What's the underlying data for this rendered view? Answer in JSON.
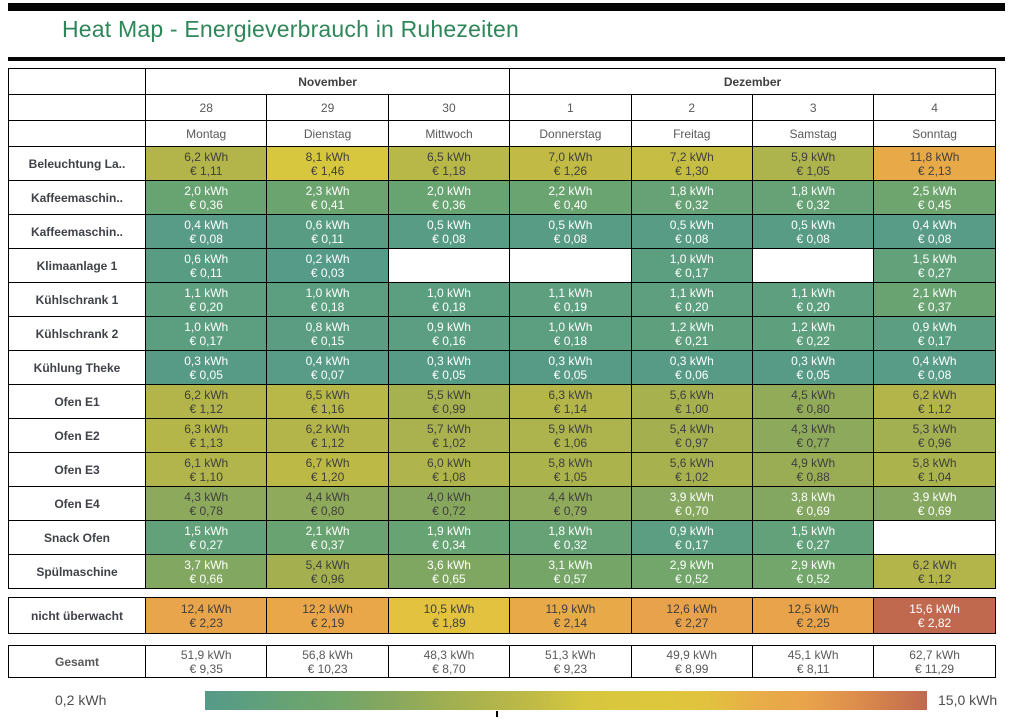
{
  "page": {
    "title": "Heat Map - Energieverbrauch in Ruhezeiten"
  },
  "colors": {
    "title_green": "#2e8659",
    "rule_black": "#050505",
    "cell_text_dark": "#3f3f3f",
    "cell_text_light": "#ffffff",
    "muted_text": "#595959",
    "label_text": "#3f4247"
  },
  "chart_data": {
    "type": "heatmap",
    "title": "Heat Map - Energieverbrauch in Ruhezeiten",
    "unit": "kWh",
    "currency": "EUR",
    "scale_min_kwh": 0.2,
    "scale_max_kwh": 15.0,
    "colormap_stops": [
      [
        0.2,
        "#569a88"
      ],
      [
        1.0,
        "#5c9e80"
      ],
      [
        2.0,
        "#68a372"
      ],
      [
        3.0,
        "#73a669"
      ],
      [
        4.0,
        "#87a75e"
      ],
      [
        5.0,
        "#9cae53"
      ],
      [
        6.0,
        "#afb44c"
      ],
      [
        7.0,
        "#c1bb45"
      ],
      [
        8.0,
        "#d7c73e"
      ],
      [
        9.5,
        "#ddc73d"
      ],
      [
        10.5,
        "#e2c23e"
      ],
      [
        11.5,
        "#e8ad48"
      ],
      [
        12.5,
        "#e9a44b"
      ],
      [
        13.5,
        "#dd8f4c"
      ],
      [
        15.0,
        "#c0694f"
      ]
    ],
    "text_dark_range": [
      4.0,
      15.0
    ],
    "columns": {
      "month_groups": [
        {
          "label": "November",
          "span": 3
        },
        {
          "label": "Dezember",
          "span": 4
        }
      ],
      "dates": [
        "28",
        "29",
        "30",
        "1",
        "2",
        "3",
        "4"
      ],
      "weekdays": [
        "Montag",
        "Dienstag",
        "Mittwoch",
        "Donnerstag",
        "Freitag",
        "Samstag",
        "Sonntag"
      ]
    },
    "rows": [
      {
        "label": "Beleuchtung La..",
        "cells": [
          {
            "kwh": "6,2 kWh",
            "eur": "€ 1,11",
            "value": 6.2
          },
          {
            "kwh": "8,1 kWh",
            "eur": "€ 1,46",
            "value": 8.1
          },
          {
            "kwh": "6,5 kWh",
            "eur": "€ 1,18",
            "value": 6.5
          },
          {
            "kwh": "7,0 kWh",
            "eur": "€ 1,26",
            "value": 7.0
          },
          {
            "kwh": "7,2 kWh",
            "eur": "€ 1,30",
            "value": 7.2
          },
          {
            "kwh": "5,9 kWh",
            "eur": "€ 1,05",
            "value": 5.9
          },
          {
            "kwh": "11,8 kWh",
            "eur": "€ 2,13",
            "value": 11.8
          }
        ]
      },
      {
        "label": "Kaffeemaschin..",
        "cells": [
          {
            "kwh": "2,0 kWh",
            "eur": "€ 0,36",
            "value": 2.0
          },
          {
            "kwh": "2,3 kWh",
            "eur": "€ 0,41",
            "value": 2.3
          },
          {
            "kwh": "2,0 kWh",
            "eur": "€ 0,36",
            "value": 2.0
          },
          {
            "kwh": "2,2 kWh",
            "eur": "€ 0,40",
            "value": 2.2
          },
          {
            "kwh": "1,8 kWh",
            "eur": "€ 0,32",
            "value": 1.8
          },
          {
            "kwh": "1,8 kWh",
            "eur": "€ 0,32",
            "value": 1.8
          },
          {
            "kwh": "2,5 kWh",
            "eur": "€ 0,45",
            "value": 2.5
          }
        ]
      },
      {
        "label": "Kaffeemaschin..",
        "cells": [
          {
            "kwh": "0,4 kWh",
            "eur": "€ 0,08",
            "value": 0.4
          },
          {
            "kwh": "0,6 kWh",
            "eur": "€ 0,11",
            "value": 0.6
          },
          {
            "kwh": "0,5 kWh",
            "eur": "€ 0,08",
            "value": 0.5
          },
          {
            "kwh": "0,5 kWh",
            "eur": "€ 0,08",
            "value": 0.5
          },
          {
            "kwh": "0,5 kWh",
            "eur": "€ 0,08",
            "value": 0.5
          },
          {
            "kwh": "0,5 kWh",
            "eur": "€ 0,08",
            "value": 0.5
          },
          {
            "kwh": "0,4 kWh",
            "eur": "€ 0,08",
            "value": 0.4
          }
        ]
      },
      {
        "label": "Klimaanlage 1",
        "cells": [
          {
            "kwh": "0,6 kWh",
            "eur": "€ 0,11",
            "value": 0.6
          },
          {
            "kwh": "0,2 kWh",
            "eur": "€ 0,03",
            "value": 0.2
          },
          null,
          null,
          {
            "kwh": "1,0 kWh",
            "eur": "€ 0,17",
            "value": 1.0
          },
          null,
          {
            "kwh": "1,5 kWh",
            "eur": "€ 0,27",
            "value": 1.5
          }
        ]
      },
      {
        "label": "Kühlschrank 1",
        "cells": [
          {
            "kwh": "1,1 kWh",
            "eur": "€ 0,20",
            "value": 1.1
          },
          {
            "kwh": "1,0 kWh",
            "eur": "€ 0,18",
            "value": 1.0
          },
          {
            "kwh": "1,0 kWh",
            "eur": "€ 0,18",
            "value": 1.0
          },
          {
            "kwh": "1,1 kWh",
            "eur": "€ 0,19",
            "value": 1.1
          },
          {
            "kwh": "1,1 kWh",
            "eur": "€ 0,20",
            "value": 1.1
          },
          {
            "kwh": "1,1 kWh",
            "eur": "€ 0,20",
            "value": 1.1
          },
          {
            "kwh": "2,1 kWh",
            "eur": "€ 0,37",
            "value": 2.1
          }
        ]
      },
      {
        "label": "Kühlschrank 2",
        "cells": [
          {
            "kwh": "1,0 kWh",
            "eur": "€ 0,17",
            "value": 1.0
          },
          {
            "kwh": "0,8 kWh",
            "eur": "€ 0,15",
            "value": 0.8
          },
          {
            "kwh": "0,9 kWh",
            "eur": "€ 0,16",
            "value": 0.9
          },
          {
            "kwh": "1,0 kWh",
            "eur": "€ 0,18",
            "value": 1.0
          },
          {
            "kwh": "1,2 kWh",
            "eur": "€ 0,21",
            "value": 1.2
          },
          {
            "kwh": "1,2 kWh",
            "eur": "€ 0,22",
            "value": 1.2
          },
          {
            "kwh": "0,9 kWh",
            "eur": "€ 0,17",
            "value": 0.9
          }
        ]
      },
      {
        "label": "Kühlung Theke",
        "cells": [
          {
            "kwh": "0,3 kWh",
            "eur": "€ 0,05",
            "value": 0.3
          },
          {
            "kwh": "0,4 kWh",
            "eur": "€ 0,07",
            "value": 0.4
          },
          {
            "kwh": "0,3 kWh",
            "eur": "€ 0,05",
            "value": 0.3
          },
          {
            "kwh": "0,3 kWh",
            "eur": "€ 0,05",
            "value": 0.3
          },
          {
            "kwh": "0,3 kWh",
            "eur": "€ 0,06",
            "value": 0.3
          },
          {
            "kwh": "0,3 kWh",
            "eur": "€ 0,05",
            "value": 0.3
          },
          {
            "kwh": "0,4 kWh",
            "eur": "€ 0,08",
            "value": 0.4
          }
        ]
      },
      {
        "label": "Ofen E1",
        "cells": [
          {
            "kwh": "6,2 kWh",
            "eur": "€ 1,12",
            "value": 6.2
          },
          {
            "kwh": "6,5 kWh",
            "eur": "€ 1,16",
            "value": 6.5
          },
          {
            "kwh": "5,5 kWh",
            "eur": "€ 0,99",
            "value": 5.5
          },
          {
            "kwh": "6,3 kWh",
            "eur": "€ 1,14",
            "value": 6.3
          },
          {
            "kwh": "5,6 kWh",
            "eur": "€ 1,00",
            "value": 5.6
          },
          {
            "kwh": "4,5 kWh",
            "eur": "€ 0,80",
            "value": 4.5
          },
          {
            "kwh": "6,2 kWh",
            "eur": "€ 1,12",
            "value": 6.2
          }
        ]
      },
      {
        "label": "Ofen E2",
        "cells": [
          {
            "kwh": "6,3 kWh",
            "eur": "€ 1,13",
            "value": 6.3
          },
          {
            "kwh": "6,2 kWh",
            "eur": "€ 1,12",
            "value": 6.2
          },
          {
            "kwh": "5,7 kWh",
            "eur": "€ 1,02",
            "value": 5.7
          },
          {
            "kwh": "5,9 kWh",
            "eur": "€ 1,06",
            "value": 5.9
          },
          {
            "kwh": "5,4 kWh",
            "eur": "€ 0,97",
            "value": 5.4
          },
          {
            "kwh": "4,3 kWh",
            "eur": "€ 0,77",
            "value": 4.3
          },
          {
            "kwh": "5,3 kWh",
            "eur": "€ 0,96",
            "value": 5.3
          }
        ]
      },
      {
        "label": "Ofen E3",
        "cells": [
          {
            "kwh": "6,1 kWh",
            "eur": "€ 1,10",
            "value": 6.1
          },
          {
            "kwh": "6,7 kWh",
            "eur": "€ 1,20",
            "value": 6.7
          },
          {
            "kwh": "6,0 kWh",
            "eur": "€ 1,08",
            "value": 6.0
          },
          {
            "kwh": "5,8 kWh",
            "eur": "€ 1,05",
            "value": 5.8
          },
          {
            "kwh": "5,6 kWh",
            "eur": "€ 1,02",
            "value": 5.6
          },
          {
            "kwh": "4,9 kWh",
            "eur": "€ 0,88",
            "value": 4.9
          },
          {
            "kwh": "5,8 kWh",
            "eur": "€ 1,04",
            "value": 5.8
          }
        ]
      },
      {
        "label": "Ofen E4",
        "cells": [
          {
            "kwh": "4,3 kWh",
            "eur": "€ 0,78",
            "value": 4.3
          },
          {
            "kwh": "4,4 kWh",
            "eur": "€ 0,80",
            "value": 4.4
          },
          {
            "kwh": "4,0 kWh",
            "eur": "€ 0,72",
            "value": 4.0
          },
          {
            "kwh": "4,4 kWh",
            "eur": "€ 0,79",
            "value": 4.4
          },
          {
            "kwh": "3,9 kWh",
            "eur": "€ 0,70",
            "value": 3.9
          },
          {
            "kwh": "3,8 kWh",
            "eur": "€ 0,69",
            "value": 3.8
          },
          {
            "kwh": "3,9 kWh",
            "eur": "€ 0,69",
            "value": 3.9
          }
        ]
      },
      {
        "label": "Snack Ofen",
        "cells": [
          {
            "kwh": "1,5 kWh",
            "eur": "€ 0,27",
            "value": 1.5
          },
          {
            "kwh": "2,1 kWh",
            "eur": "€ 0,37",
            "value": 2.1
          },
          {
            "kwh": "1,9 kWh",
            "eur": "€ 0,34",
            "value": 1.9
          },
          {
            "kwh": "1,8 kWh",
            "eur": "€ 0,32",
            "value": 1.8
          },
          {
            "kwh": "0,9 kWh",
            "eur": "€ 0,17",
            "value": 0.9
          },
          {
            "kwh": "1,5 kWh",
            "eur": "€ 0,27",
            "value": 1.5
          },
          null
        ]
      },
      {
        "label": "Spülmaschine",
        "cells": [
          {
            "kwh": "3,7 kWh",
            "eur": "€ 0,66",
            "value": 3.7
          },
          {
            "kwh": "5,4 kWh",
            "eur": "€ 0,96",
            "value": 5.4
          },
          {
            "kwh": "3,6 kWh",
            "eur": "€ 0,65",
            "value": 3.6
          },
          {
            "kwh": "3,1 kWh",
            "eur": "€ 0,57",
            "value": 3.1
          },
          {
            "kwh": "2,9 kWh",
            "eur": "€ 0,52",
            "value": 2.9
          },
          {
            "kwh": "2,9 kWh",
            "eur": "€ 0,52",
            "value": 2.9
          },
          {
            "kwh": "6,2 kWh",
            "eur": "€ 1,12",
            "value": 6.2
          }
        ]
      }
    ],
    "summary_rows": [
      {
        "label": "nicht überwacht",
        "style": "heat",
        "cells": [
          {
            "kwh": "12,4 kWh",
            "eur": "€ 2,23",
            "value": 12.4
          },
          {
            "kwh": "12,2 kWh",
            "eur": "€ 2,19",
            "value": 12.2
          },
          {
            "kwh": "10,5 kWh",
            "eur": "€ 1,89",
            "value": 10.5
          },
          {
            "kwh": "11,9 kWh",
            "eur": "€ 2,14",
            "value": 11.9
          },
          {
            "kwh": "12,6 kWh",
            "eur": "€ 2,27",
            "value": 12.6
          },
          {
            "kwh": "12,5 kWh",
            "eur": "€ 2,25",
            "value": 12.5
          },
          {
            "kwh": "15,6 kWh",
            "eur": "€ 2,82",
            "value": 15.6
          }
        ]
      },
      {
        "label": "Gesamt",
        "style": "plain",
        "cells": [
          {
            "kwh": "51,9 kWh",
            "eur": "€ 9,35",
            "value": 51.9
          },
          {
            "kwh": "56,8 kWh",
            "eur": "€ 10,23",
            "value": 56.8
          },
          {
            "kwh": "48,3 kWh",
            "eur": "€ 8,70",
            "value": 48.3
          },
          {
            "kwh": "51,3 kWh",
            "eur": "€ 9,23",
            "value": 51.3
          },
          {
            "kwh": "49,9 kWh",
            "eur": "€ 8,99",
            "value": 49.9
          },
          {
            "kwh": "45,1 kWh",
            "eur": "€ 8,11",
            "value": 45.1
          },
          {
            "kwh": "62,7 kWh",
            "eur": "€ 11,29",
            "value": 62.7
          }
        ]
      }
    ],
    "legend": {
      "min_label": "0,2 kWh",
      "max_label": "15,0 kWh",
      "tick_percent": 40.4
    }
  }
}
